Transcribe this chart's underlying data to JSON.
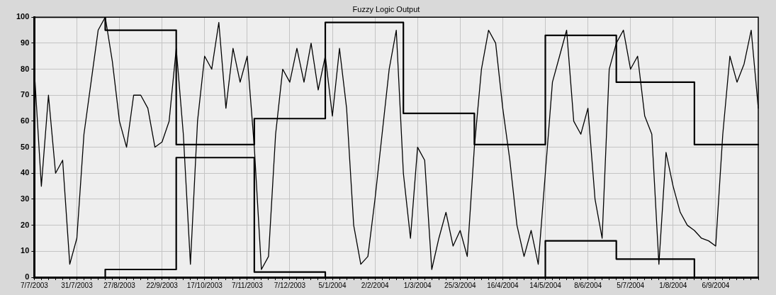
{
  "chart_data": {
    "type": "line",
    "title": "Fuzzy Logic Output",
    "categories": [
      "7/7/2003",
      null,
      null,
      null,
      null,
      null,
      "31/7/2003",
      null,
      null,
      null,
      null,
      null,
      "27/8/2003",
      null,
      null,
      null,
      null,
      null,
      "22/9/2003",
      null,
      null,
      null,
      null,
      null,
      "17/10/2003",
      null,
      null,
      null,
      null,
      null,
      "7/11/2003",
      null,
      null,
      null,
      null,
      null,
      "7/12/2003",
      null,
      null,
      null,
      null,
      null,
      "5/1/2004",
      null,
      null,
      null,
      null,
      null,
      "2/2/2004",
      null,
      null,
      null,
      null,
      null,
      "1/3/2004",
      null,
      null,
      null,
      null,
      null,
      "25/3/2004",
      null,
      null,
      null,
      null,
      null,
      "16/4/2004",
      null,
      null,
      null,
      null,
      null,
      "14/5/2004",
      null,
      null,
      null,
      null,
      null,
      "8/6/2004",
      null,
      null,
      null,
      null,
      null,
      "5/7/2004",
      null,
      null,
      null,
      null,
      null,
      "1/8/2004",
      null,
      null,
      null,
      null,
      null,
      "6/9/2004",
      null,
      null,
      null,
      null,
      null,
      null
    ],
    "series": [
      {
        "type": "line",
        "color": "#000000",
        "values": [
          80,
          35,
          70,
          40,
          45,
          5,
          15,
          55,
          75,
          95,
          100,
          83,
          60,
          50,
          70,
          70,
          65,
          50,
          52,
          60,
          88,
          55,
          5,
          60,
          85,
          80,
          98,
          65,
          88,
          75,
          85,
          50,
          3,
          8,
          55,
          80,
          75,
          88,
          75,
          90,
          72,
          85,
          62,
          88,
          65,
          20,
          5,
          8,
          30,
          55,
          80,
          95,
          40,
          15,
          50,
          45,
          3,
          15,
          25,
          12,
          18,
          8,
          50,
          80,
          95,
          90,
          65,
          45,
          20,
          8,
          18,
          5,
          40,
          75,
          85,
          95,
          60,
          55,
          65,
          30,
          15,
          80,
          90,
          95,
          80,
          85,
          62,
          55,
          5,
          48,
          35,
          25,
          20,
          18,
          15,
          14,
          12,
          55,
          85,
          75,
          82,
          95,
          65
        ]
      },
      {
        "type": "step",
        "color": "#000000",
        "values": [
          100,
          100,
          100,
          100,
          100,
          100,
          100,
          100,
          100,
          100,
          100,
          95,
          95,
          95,
          95,
          95,
          95,
          95,
          95,
          95,
          95,
          51,
          51,
          51,
          51,
          51,
          51,
          51,
          51,
          51,
          51,
          51,
          61,
          61,
          61,
          61,
          61,
          61,
          61,
          61,
          61,
          61,
          98,
          98,
          98,
          98,
          98,
          98,
          98,
          98,
          98,
          98,
          98,
          63,
          63,
          63,
          63,
          63,
          63,
          63,
          63,
          63,
          63,
          51,
          51,
          51,
          51,
          51,
          51,
          51,
          51,
          51,
          51,
          93,
          93,
          93,
          93,
          93,
          93,
          93,
          93,
          93,
          93,
          75,
          75,
          75,
          75,
          75,
          75,
          75,
          75,
          75,
          75,
          75,
          51,
          51,
          51,
          51,
          51,
          51,
          51,
          51,
          51
        ]
      },
      {
        "type": "step",
        "color": "#000000",
        "values": [
          0,
          0,
          0,
          0,
          0,
          0,
          0,
          0,
          0,
          0,
          0,
          3,
          3,
          3,
          3,
          3,
          3,
          3,
          3,
          3,
          3,
          46,
          46,
          46,
          46,
          46,
          46,
          46,
          46,
          46,
          46,
          46,
          2,
          2,
          2,
          2,
          2,
          2,
          2,
          2,
          2,
          2,
          0,
          0,
          0,
          0,
          0,
          0,
          0,
          0,
          0,
          0,
          0,
          0,
          0,
          0,
          0,
          0,
          0,
          0,
          0,
          0,
          0,
          0,
          0,
          0,
          0,
          0,
          0,
          0,
          0,
          0,
          0,
          14,
          14,
          14,
          14,
          14,
          14,
          14,
          14,
          14,
          14,
          7,
          7,
          7,
          7,
          7,
          7,
          7,
          7,
          7,
          7,
          7,
          0,
          0,
          0,
          0,
          0,
          0,
          0,
          0,
          0
        ]
      }
    ],
    "ylim": [
      0,
      100
    ],
    "yticks": [
      0,
      10,
      20,
      30,
      40,
      50,
      60,
      70,
      80,
      90,
      100
    ],
    "grid": true,
    "legend": false,
    "marker": "none"
  }
}
